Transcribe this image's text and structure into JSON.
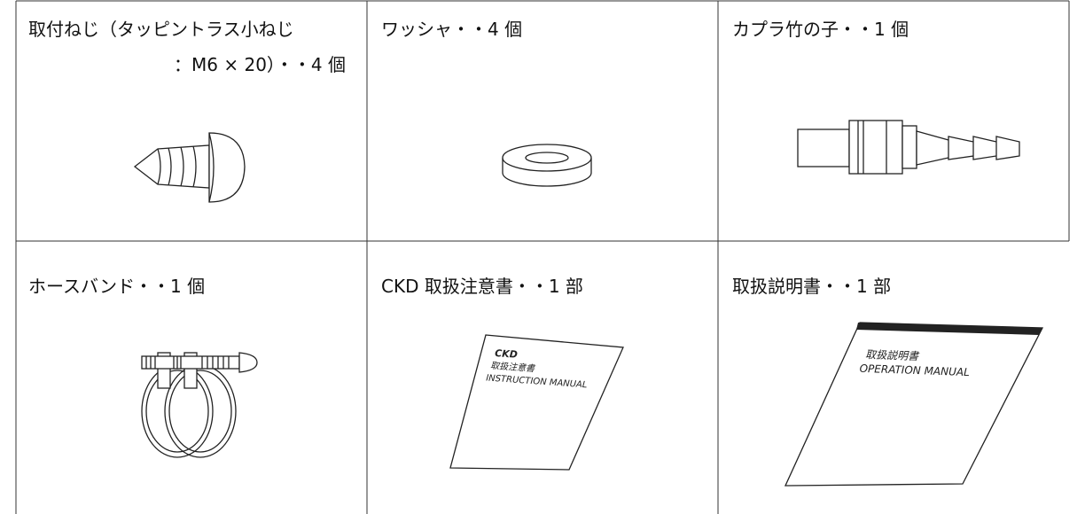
{
  "table": {
    "rows": [
      [
        {
          "label": [
            "取付ねじ（タッピントラス小ねじ",
            "：M6 × 20）・・4 個"
          ]
        },
        {
          "label": [
            "ワッシャ・・4 個"
          ]
        },
        {
          "label": [
            "カプラ竹の子・・1 個"
          ]
        }
      ],
      [
        {
          "label": [
            "ホースバンド・・1 個"
          ]
        },
        {
          "label": [
            "CKD 取扱注意書・・1 部"
          ],
          "sheet": [
            "CKD",
            "取扱注意書",
            "INSTRUCTION MANUAL"
          ]
        },
        {
          "label": [
            "取扱説明書・・1 部"
          ],
          "sheet": [
            "取扱説明書",
            "OPERATION MANUAL"
          ]
        }
      ]
    ]
  }
}
